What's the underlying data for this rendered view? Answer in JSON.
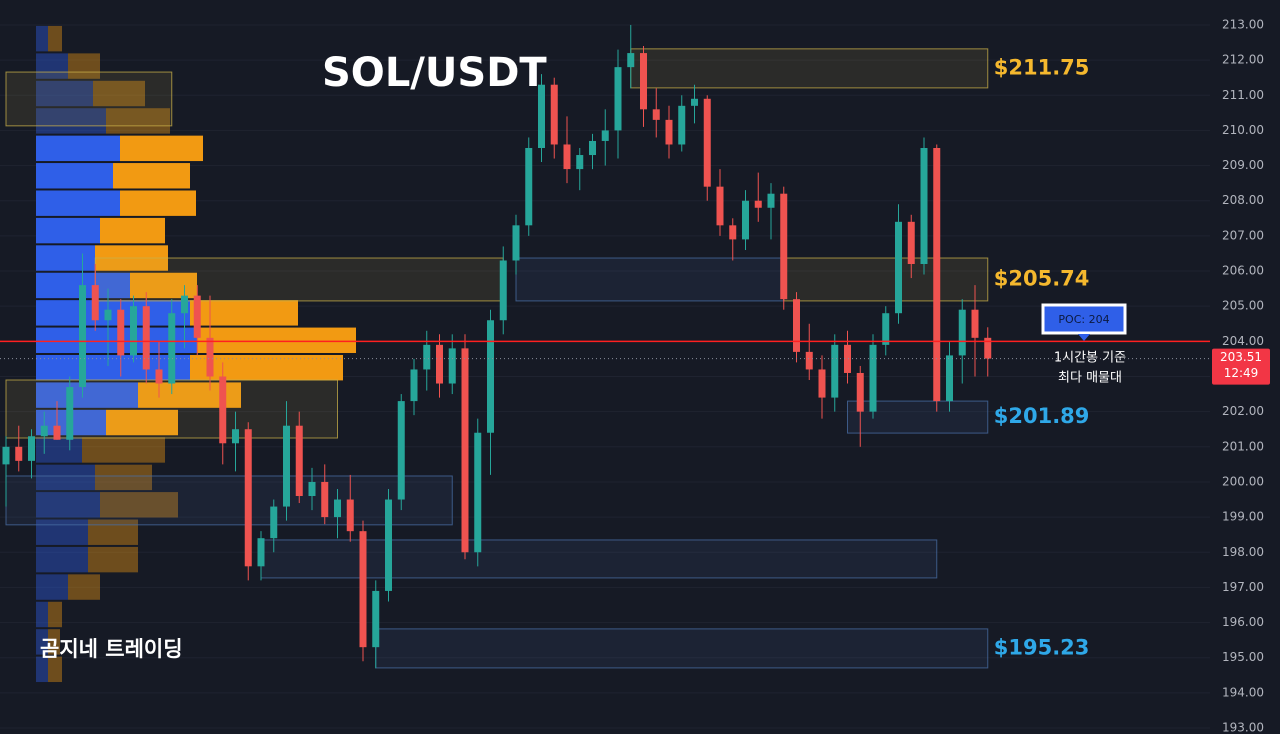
{
  "chart_data": {
    "type": "candlestick",
    "title": "SOL/USDT",
    "watermark": "곰지네 트레이딩",
    "ylim": [
      192.83,
      213.71
    ],
    "yticks": [
      {
        "value": 193,
        "label": "193.00"
      },
      {
        "value": 194,
        "label": "194.00"
      },
      {
        "value": 195,
        "label": "195.00"
      },
      {
        "value": 196,
        "label": "196.00"
      },
      {
        "value": 197,
        "label": "197.00"
      },
      {
        "value": 198,
        "label": "198.00"
      },
      {
        "value": 199,
        "label": "199.00"
      },
      {
        "value": 200,
        "label": "200.00"
      },
      {
        "value": 201,
        "label": "201.00"
      },
      {
        "value": 202,
        "label": "202.00"
      },
      {
        "value": 203,
        "label": "203.00"
      },
      {
        "value": 204,
        "label": "204.00"
      },
      {
        "value": 205,
        "label": "205.00"
      },
      {
        "value": 206,
        "label": "206.00"
      },
      {
        "value": 207,
        "label": "207.00"
      },
      {
        "value": 208,
        "label": "208.00"
      },
      {
        "value": 209,
        "label": "209.00"
      },
      {
        "value": 210,
        "label": "210.00"
      },
      {
        "value": 211,
        "label": "211.00"
      },
      {
        "value": 212,
        "label": "212.00"
      },
      {
        "value": 213,
        "label": "213.00"
      }
    ],
    "grid": true,
    "up_color": "#26a69a",
    "down_color": "#ef5350",
    "open": [
      200.5,
      201.0,
      200.6,
      201.3,
      201.6,
      201.2,
      202.7,
      205.6,
      204.6,
      204.9,
      203.6,
      205.0,
      203.2,
      202.8,
      204.8,
      205.3,
      204.1,
      203.0,
      201.1,
      201.5,
      197.6,
      198.4,
      199.3,
      201.6,
      199.6,
      200.0,
      199.0,
      199.5,
      198.6,
      195.3,
      196.9,
      199.5,
      202.3,
      203.2,
      203.9,
      202.8,
      203.8,
      198.0,
      201.4,
      204.6,
      206.3,
      207.3,
      209.5,
      211.3,
      209.6,
      208.9,
      209.3,
      209.7,
      210.0,
      211.8,
      212.2,
      210.6,
      210.3,
      209.6,
      210.7,
      210.9,
      208.4,
      207.3,
      206.9,
      208.0,
      207.8,
      208.2,
      205.2,
      203.7,
      203.2,
      202.4,
      203.9,
      203.1,
      202.0,
      203.9,
      204.8,
      207.4,
      206.2,
      209.5,
      202.3,
      203.6,
      204.9,
      204.1
    ],
    "high": [
      201.3,
      201.6,
      201.5,
      202.0,
      202.3,
      203.0,
      206.5,
      206.2,
      205.5,
      205.2,
      205.3,
      205.4,
      204.0,
      205.2,
      205.6,
      205.6,
      205.3,
      203.4,
      202.0,
      201.7,
      198.6,
      199.5,
      202.3,
      202.0,
      200.4,
      200.5,
      199.8,
      200.2,
      198.9,
      197.2,
      199.8,
      202.5,
      203.5,
      204.3,
      204.2,
      204.2,
      204.2,
      201.8,
      204.9,
      206.7,
      207.6,
      209.8,
      211.6,
      211.5,
      210.4,
      209.5,
      209.9,
      210.6,
      212.3,
      213.0,
      212.4,
      211.2,
      210.7,
      211.0,
      211.3,
      211.0,
      208.9,
      207.5,
      208.3,
      208.8,
      208.5,
      208.4,
      205.4,
      204.5,
      203.6,
      204.2,
      204.3,
      203.3,
      204.2,
      205.0,
      207.9,
      207.6,
      209.8,
      209.6,
      204.0,
      205.2,
      205.6,
      204.4
    ],
    "low": [
      199.3,
      200.3,
      200.1,
      200.8,
      201.2,
      200.9,
      202.4,
      204.3,
      203.3,
      203.0,
      203.4,
      202.8,
      202.4,
      202.5,
      203.8,
      203.6,
      202.6,
      200.5,
      200.3,
      197.2,
      197.2,
      198.0,
      198.9,
      199.4,
      199.2,
      198.8,
      198.4,
      198.3,
      194.9,
      194.7,
      196.6,
      199.2,
      201.9,
      202.6,
      202.4,
      202.5,
      197.8,
      197.6,
      200.2,
      204.2,
      205.9,
      207.0,
      209.1,
      209.2,
      208.5,
      208.3,
      208.9,
      209.0,
      209.2,
      211.2,
      210.1,
      209.8,
      209.2,
      209.4,
      210.2,
      208.0,
      207.0,
      206.3,
      206.6,
      207.4,
      206.9,
      204.9,
      203.4,
      202.9,
      201.8,
      202.0,
      202.8,
      201.0,
      201.8,
      203.6,
      204.5,
      205.8,
      205.9,
      202.0,
      202.0,
      202.8,
      203.0,
      203.0
    ],
    "close": [
      201.0,
      200.6,
      201.3,
      201.6,
      201.2,
      202.7,
      205.6,
      204.6,
      204.9,
      203.6,
      205.0,
      203.2,
      202.8,
      204.8,
      205.3,
      204.1,
      203.0,
      201.1,
      201.5,
      197.6,
      198.4,
      199.3,
      201.6,
      199.6,
      200.0,
      199.0,
      199.5,
      198.6,
      195.3,
      196.9,
      199.5,
      202.3,
      203.2,
      203.9,
      202.8,
      203.8,
      198.0,
      201.4,
      204.6,
      206.3,
      207.3,
      209.5,
      211.3,
      209.6,
      208.9,
      209.3,
      209.7,
      210.0,
      211.8,
      212.2,
      210.6,
      210.3,
      209.6,
      210.7,
      210.9,
      208.4,
      207.3,
      206.9,
      208.0,
      207.8,
      208.2,
      205.2,
      203.7,
      203.2,
      202.4,
      203.9,
      203.1,
      202.0,
      203.9,
      204.8,
      207.4,
      206.2,
      209.5,
      202.3,
      203.6,
      204.9,
      204.1,
      203.51
    ],
    "zones": [
      {
        "top": 212.32,
        "bottom": 211.21,
        "start": 49,
        "end": 77,
        "color": "#c9b04a",
        "label": "$211.75",
        "label_color": "#f5b82e"
      },
      {
        "top": 211.66,
        "bottom": 210.13,
        "start": 0,
        "end": 13,
        "color": "#c9b04a"
      },
      {
        "top": 206.37,
        "bottom": 205.15,
        "start": 7,
        "end": 39,
        "color": "#c9b04a"
      },
      {
        "top": 206.37,
        "bottom": 205.15,
        "start": 40,
        "end": 61,
        "color": "#4a6fa5"
      },
      {
        "top": 206.37,
        "bottom": 205.15,
        "start": 61,
        "end": 77,
        "color": "#c9b04a",
        "label": "$205.74",
        "label_color": "#f5b82e"
      },
      {
        "top": 202.9,
        "bottom": 201.25,
        "start": 0,
        "end": 26,
        "color": "#c9b04a"
      },
      {
        "top": 200.17,
        "bottom": 198.78,
        "start": 0,
        "end": 35,
        "color": "#4a6fa5"
      },
      {
        "top": 198.35,
        "bottom": 197.27,
        "start": 20,
        "end": 73,
        "color": "#4a6fa5"
      },
      {
        "top": 202.3,
        "bottom": 201.39,
        "start": 66,
        "end": 77,
        "color": "#4a6fa5",
        "label": "$201.89",
        "label_color": "#2fa8e8"
      },
      {
        "top": 195.82,
        "bottom": 194.71,
        "start": 29,
        "end": 77,
        "color": "#4a6fa5",
        "label": "$195.23",
        "label_color": "#2fa8e8"
      }
    ],
    "poc": {
      "value": 204,
      "label": "POC: 204",
      "color": "#ff2020",
      "note": [
        "1시간봉 기준",
        "최다 매물대"
      ]
    },
    "last_price": {
      "value": 203.51,
      "countdown": "12:49",
      "color": "#f23645"
    },
    "volume_profile": {
      "bins": [
        213.0,
        212.22,
        211.44,
        210.66,
        209.88,
        209.1,
        208.32,
        207.54,
        206.76,
        205.98,
        205.2,
        204.42,
        203.64,
        202.86,
        202.08,
        201.3,
        200.52,
        199.74,
        198.96,
        198.18,
        197.4,
        196.62,
        195.84,
        195.06,
        194.28
      ],
      "buy": [
        12,
        32,
        57,
        70,
        84,
        77,
        84,
        64,
        59,
        94,
        154,
        161,
        154,
        102,
        70,
        46,
        59,
        64,
        52,
        52,
        32,
        12,
        12,
        12
      ],
      "sell": [
        14,
        32,
        52,
        64,
        83,
        77,
        76,
        65,
        73,
        67,
        108,
        159,
        153,
        103,
        72,
        83,
        57,
        78,
        50,
        50,
        32,
        14,
        12,
        14
      ],
      "buy_color": "#2f5fe8",
      "sell_color": "#f29a12",
      "value_area": [
        201.3,
        209.88
      ]
    }
  }
}
